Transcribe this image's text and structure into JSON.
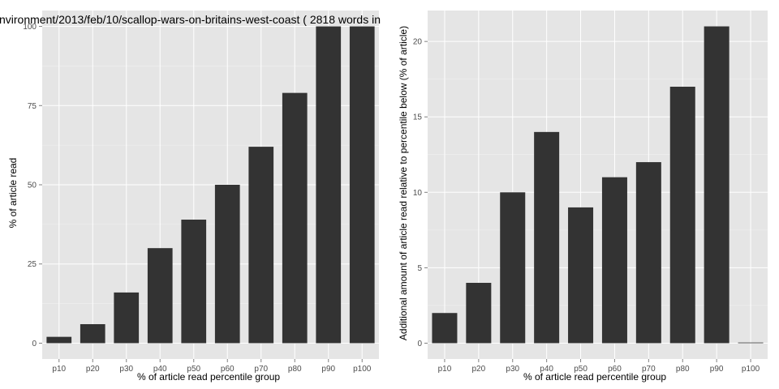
{
  "colors": {
    "panel_background": "#e5e5e5",
    "grid_major": "#ffffff",
    "bar_fill": "#333333"
  },
  "chart_data": [
    {
      "type": "bar",
      "title": "nvironment/2013/feb/10/scallop-wars-on-britains-west-coast ( 2818 words in",
      "xlabel": "% of article read percentile group",
      "ylabel": "% of article read",
      "categories": [
        "p10",
        "p20",
        "p30",
        "p40",
        "p50",
        "p60",
        "p70",
        "p80",
        "p90",
        "p100"
      ],
      "values": [
        2,
        6,
        16,
        30,
        39,
        50,
        62,
        79,
        100,
        100
      ],
      "ylim": [
        0,
        100
      ],
      "yticks": [
        0,
        25,
        50,
        75,
        100
      ],
      "grid": true
    },
    {
      "type": "bar",
      "title": "",
      "xlabel": "% of article read percentile group",
      "ylabel": "Additional amount of article read relative to percentile below (% of article)",
      "categories": [
        "p10",
        "p20",
        "p30",
        "p40",
        "p50",
        "p60",
        "p70",
        "p80",
        "p90",
        "p100"
      ],
      "values": [
        2,
        4,
        10,
        14,
        9,
        11,
        12,
        17,
        21,
        0
      ],
      "ylim": [
        0,
        21
      ],
      "yticks": [
        0,
        5,
        10,
        15,
        20
      ],
      "grid": true
    }
  ]
}
